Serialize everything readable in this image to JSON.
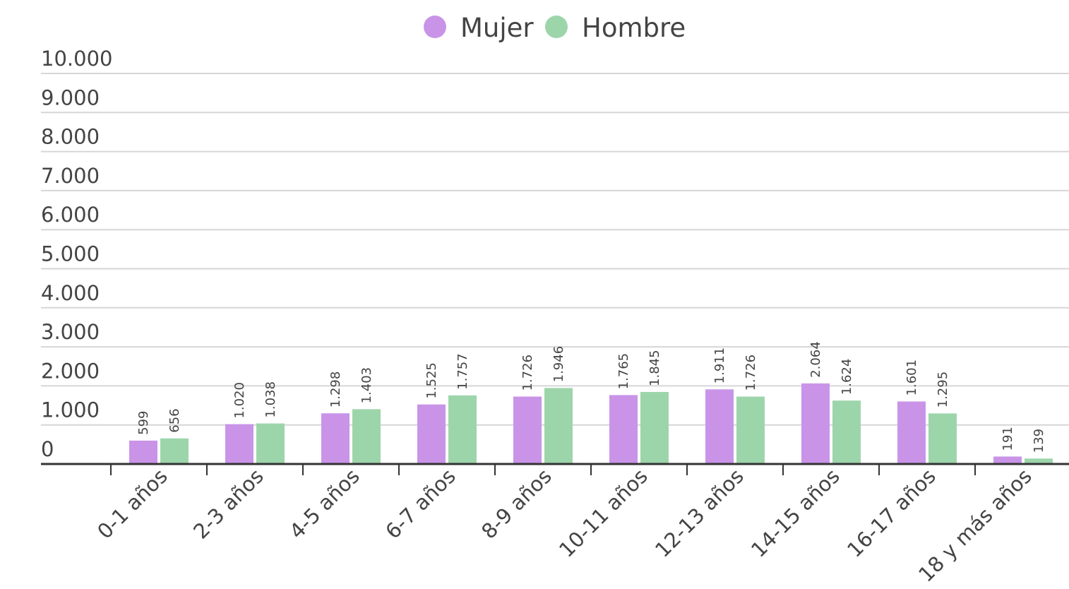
{
  "chart_data": {
    "type": "bar",
    "categories": [
      "0-1 años",
      "2-3 años",
      "4-5 años",
      "6-7 años",
      "8-9 años",
      "10-11 años",
      "12-13 años",
      "14-15 años",
      "16-17 años",
      "18 y más años"
    ],
    "series": [
      {
        "name": "Mujer",
        "color": "#c994e8",
        "values": [
          599,
          1020,
          1298,
          1525,
          1726,
          1765,
          1911,
          2064,
          1601,
          191
        ],
        "value_labels": [
          "599",
          "1.020",
          "1.298",
          "1.525",
          "1.726",
          "1.765",
          "1.911",
          "2.064",
          "1.601",
          "191"
        ]
      },
      {
        "name": "Hombre",
        "color": "#9dd5ab",
        "values": [
          656,
          1038,
          1403,
          1757,
          1946,
          1845,
          1726,
          1624,
          1295,
          139
        ],
        "value_labels": [
          "656",
          "1.038",
          "1.403",
          "1.757",
          "1.946",
          "1.845",
          "1.726",
          "1.624",
          "1.295",
          "139"
        ]
      }
    ],
    "ylim": [
      0,
      10000
    ],
    "yticks": [
      0,
      {
        "value": 1000,
        "label": "1.000"
      },
      {
        "value": 2000,
        "label": "2.000"
      },
      {
        "value": 3000,
        "label": "3.000"
      },
      {
        "value": 4000,
        "label": "4.000"
      },
      {
        "value": 5000,
        "label": "5.000"
      },
      {
        "value": 6000,
        "label": "6.000"
      },
      {
        "value": 7000,
        "label": "7.000"
      },
      {
        "value": 8000,
        "label": "8.000"
      },
      {
        "value": 9000,
        "label": "9.000"
      },
      {
        "value": 10000,
        "label": "10.000"
      }
    ],
    "grid": true,
    "legend": "top"
  }
}
